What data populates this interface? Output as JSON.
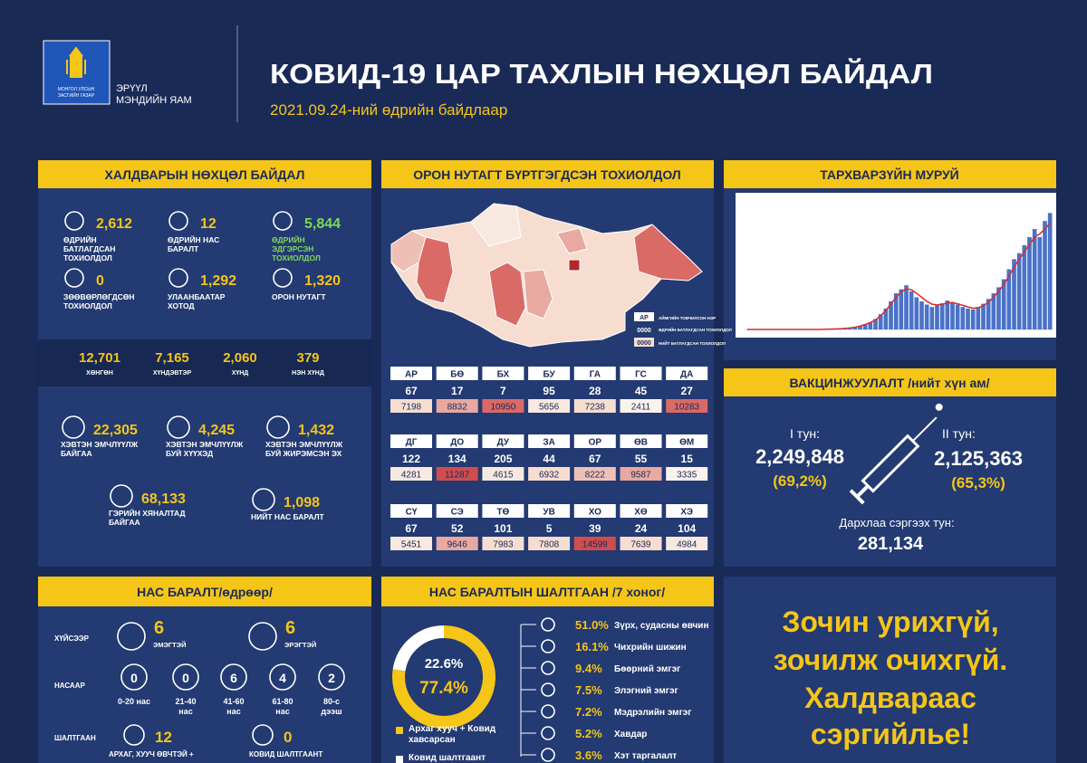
{
  "header": {
    "org_top": [
      "МОНГОЛ УЛСЫН",
      "ЗАСГИЙН ГАЗАР"
    ],
    "org": [
      "ЭРҮҮЛ",
      "МЭНДИЙН ЯАМ"
    ],
    "title": "КОВИД-19 ЦАР ТАХЛЫН НӨХЦӨЛ БАЙДАЛ",
    "subtitle": "2021.09.24-ний өдрийн байдлаар"
  },
  "situation": {
    "title": "ХАЛДВАРЫН НӨХЦӨЛ БАЙДАЛ",
    "daily": [
      {
        "value": "2,612",
        "lines": [
          "ӨДРИЙН",
          "БАТЛАГДСАН",
          "ТОХИОЛДОЛ"
        ]
      },
      {
        "value": "12",
        "lines": [
          "ӨДРИЙН НАС",
          "БАРАЛТ"
        ]
      },
      {
        "value": "5,844",
        "lines": [
          "ӨДРИЙН",
          "ЭДГЭРСЭН",
          "ТОХИОЛДОЛ"
        ],
        "color": "#7ed957"
      },
      {
        "value": "0",
        "lines": [
          "ЗӨӨВӨРЛӨГДСӨН",
          "ТОХИОЛДОЛ"
        ]
      },
      {
        "value": "1,292",
        "lines": [
          "УЛААНБААТАР",
          "ХОТОД"
        ]
      },
      {
        "value": "1,320",
        "lines": [
          "ОРОН НУТАГТ"
        ]
      }
    ],
    "severity": [
      {
        "value": "12,701",
        "label": "ХӨНГӨН"
      },
      {
        "value": "7,165",
        "label": "ХҮНДЭВТЭР"
      },
      {
        "value": "2,060",
        "label": "ХҮНД"
      },
      {
        "value": "379",
        "label": "НЭН ХҮНД"
      }
    ],
    "care": [
      {
        "value": "22,305",
        "lines": [
          "ХЭВТЭН ЭМЧЛҮҮЛЖ",
          "БАЙГАА"
        ]
      },
      {
        "value": "4,245",
        "lines": [
          "ХЭВТЭН ЭМЧЛҮҮЛЖ",
          "БУЙ ХҮҮХЭД"
        ]
      },
      {
        "value": "1,432",
        "lines": [
          "ХЭВТЭН ЭМЧЛҮҮЛЖ",
          "БУЙ ЖИРЭМСЭН ЭХ"
        ]
      },
      {
        "value": "68,133",
        "lines": [
          "ГЭРИЙН ХЯНАЛТАД",
          "БАЙГАА"
        ]
      },
      {
        "value": "1,098",
        "lines": [
          "НИЙТ НАС БАРАЛТ"
        ]
      }
    ]
  },
  "provinces": {
    "title": "ОРОН НУТАГТ БҮРТГЭГДСЭН ТОХИОЛДОЛ",
    "legend": {
      "code": "АР",
      "code_text": "АЙМГИЙН ТОВЧИЛСОН НЭР",
      "daily": "0000",
      "daily_text": "ӨДРИЙН БАТЛАГДСАН ТОХИОЛДОЛ",
      "total": "0000",
      "total_text": "НИЙТ БАТЛАГДСАН ТОХИОЛДОЛ"
    },
    "rows": [
      [
        {
          "code": "АР",
          "daily": "67",
          "total": "7198",
          "color": "#f6ddd0"
        },
        {
          "code": "БӨ",
          "daily": "17",
          "total": "8832",
          "color": "#e7a9a0"
        },
        {
          "code": "БХ",
          "daily": "7",
          "total": "10950",
          "color": "#d96a66"
        },
        {
          "code": "БУ",
          "daily": "95",
          "total": "5656",
          "color": "#f8e9e0"
        },
        {
          "code": "ГА",
          "daily": "28",
          "total": "7238",
          "color": "#f6ddd0"
        },
        {
          "code": "ГС",
          "daily": "45",
          "total": "2411",
          "color": "#fbf2ec"
        },
        {
          "code": "ДА",
          "daily": "27",
          "total": "10283",
          "color": "#d96a66"
        }
      ],
      [
        {
          "code": "ДГ",
          "daily": "122",
          "total": "4281",
          "color": "#f8e9e0"
        },
        {
          "code": "ДО",
          "daily": "134",
          "total": "11287",
          "color": "#cf4d4d"
        },
        {
          "code": "ДУ",
          "daily": "205",
          "total": "4615",
          "color": "#f8e9e0"
        },
        {
          "code": "ЗА",
          "daily": "44",
          "total": "6932",
          "color": "#f6ddd0"
        },
        {
          "code": "ОР",
          "daily": "67",
          "total": "8222",
          "color": "#eec0b5"
        },
        {
          "code": "ӨВ",
          "daily": "55",
          "total": "9587",
          "color": "#e7a9a0"
        },
        {
          "code": "ӨМ",
          "daily": "15",
          "total": "3335",
          "color": "#fbf2ec"
        }
      ],
      [
        {
          "code": "СҮ",
          "daily": "67",
          "total": "5451",
          "color": "#f8e9e0"
        },
        {
          "code": "СЭ",
          "daily": "52",
          "total": "9646",
          "color": "#e7a9a0"
        },
        {
          "code": "ТӨ",
          "daily": "101",
          "total": "7983",
          "color": "#f6ddd0"
        },
        {
          "code": "УВ",
          "daily": "5",
          "total": "7808",
          "color": "#f6ddd0"
        },
        {
          "code": "ХО",
          "daily": "39",
          "total": "14599",
          "color": "#cf4d4d"
        },
        {
          "code": "ХӨ",
          "daily": "24",
          "total": "7639",
          "color": "#f6ddd0"
        },
        {
          "code": "ХЭ",
          "daily": "104",
          "total": "4984",
          "color": "#f8e9e0"
        }
      ]
    ]
  },
  "epi_title": "ТАРХВАРЗҮЙН МУРУЙ",
  "vaccination": {
    "title": "ВАКЦИНЖУУЛАЛТ /нийт хүн ам/",
    "dose1_label": "I тун:",
    "dose1": "2,249,848",
    "dose1_pct": "(69,2%)",
    "dose2_label": "II тун:",
    "dose2": "2,125,363",
    "dose2_pct": "(65,3%)",
    "booster_label": "Дархлаа сэргээх тун:",
    "booster": "281,134"
  },
  "deaths": {
    "title": "НАС БАРАЛТ/өдрөөр/",
    "by_sex_label": "ХҮЙСЭЭР",
    "sex": [
      {
        "value": "6",
        "label": "ЭМЭГТЭЙ"
      },
      {
        "value": "6",
        "label": "ЭРЭГТЭЙ"
      }
    ],
    "by_age_label": "НАСААР",
    "age": [
      {
        "value": "0",
        "lines": [
          "0-20 нас"
        ]
      },
      {
        "value": "0",
        "lines": [
          "21-40",
          "нас"
        ]
      },
      {
        "value": "6",
        "lines": [
          "41-60",
          "нас"
        ]
      },
      {
        "value": "4",
        "lines": [
          "61-80",
          "нас"
        ]
      },
      {
        "value": "2",
        "lines": [
          "80-с",
          "дээш"
        ]
      }
    ],
    "by_cause_label": "ШАЛТГААН",
    "cause": [
      {
        "value": "12",
        "label": "АРХАГ, ХУУЧ ӨВЧТЭЙ +"
      },
      {
        "value": "0",
        "label": "КОВИД ШАЛТГААНТ"
      }
    ]
  },
  "death_causes": {
    "title": "НАС БАРАЛТЫН ШАЛТГААН /7 хоног/",
    "items": [
      {
        "pct": "51.0%",
        "label": "Зүрх, судасны өвчин"
      },
      {
        "pct": "16.1%",
        "label": "Чихрийн шижин"
      },
      {
        "pct": "9.4%",
        "label": "Бөөрний эмгэг"
      },
      {
        "pct": "7.5%",
        "label": "Элэгний эмгэг"
      },
      {
        "pct": "7.2%",
        "label": "Мэдрэлийн эмгэг"
      },
      {
        "pct": "5.2%",
        "label": "Хавдар"
      },
      {
        "pct": "3.6%",
        "label": "Хэт таргалалт"
      }
    ]
  },
  "slogan": [
    "Зочин урихгүй,",
    "зочилж очихгүй.",
    "Халдвараас",
    "сэргийлье!"
  ],
  "chart_data": [
    {
      "type": "bar",
      "ylim": [
        0,
        3200
      ],
      "series": [
        {
          "color": "#4a72c8",
          "values": [
            0,
            0,
            0,
            0,
            0,
            0,
            0,
            0,
            0,
            0,
            0,
            0,
            0,
            0,
            0,
            5,
            10,
            10,
            20,
            30,
            40,
            60,
            90,
            130,
            180,
            260,
            380,
            520,
            700,
            900,
            1000,
            1100,
            950,
            800,
            700,
            620,
            560,
            600,
            650,
            720,
            680,
            620,
            560,
            520,
            500,
            560,
            640,
            760,
            900,
            1050,
            1250,
            1500,
            1750,
            1900,
            2100,
            2300,
            2500,
            2300,
            2700,
            2900
          ]
        },
        {
          "color": "#d92b2b",
          "values": [
            0,
            0,
            0,
            0,
            0,
            0,
            0,
            0,
            0,
            0,
            0,
            0,
            0,
            0,
            0,
            4,
            8,
            12,
            18,
            26,
            38,
            56,
            84,
            122,
            170,
            240,
            340,
            470,
            630,
            800,
            930,
            1010,
            990,
            900,
            800,
            700,
            630,
            610,
            630,
            660,
            670,
            640,
            600,
            560,
            530,
            540,
            590,
            680,
            800,
            950,
            1120,
            1330,
            1550,
            1750,
            1930,
            2120,
            2300,
            2380,
            2500,
            2650
          ]
        }
      ]
    },
    {
      "type": "pie",
      "categories": [
        "Ковид шалтгаант",
        "Архаг хууч + Ковид хавсарсан"
      ],
      "values": [
        22.6,
        77.4
      ],
      "value_labels": [
        "22.6%",
        "77.4%"
      ],
      "colors": [
        "#ffffff",
        "#f5c518"
      ]
    }
  ]
}
